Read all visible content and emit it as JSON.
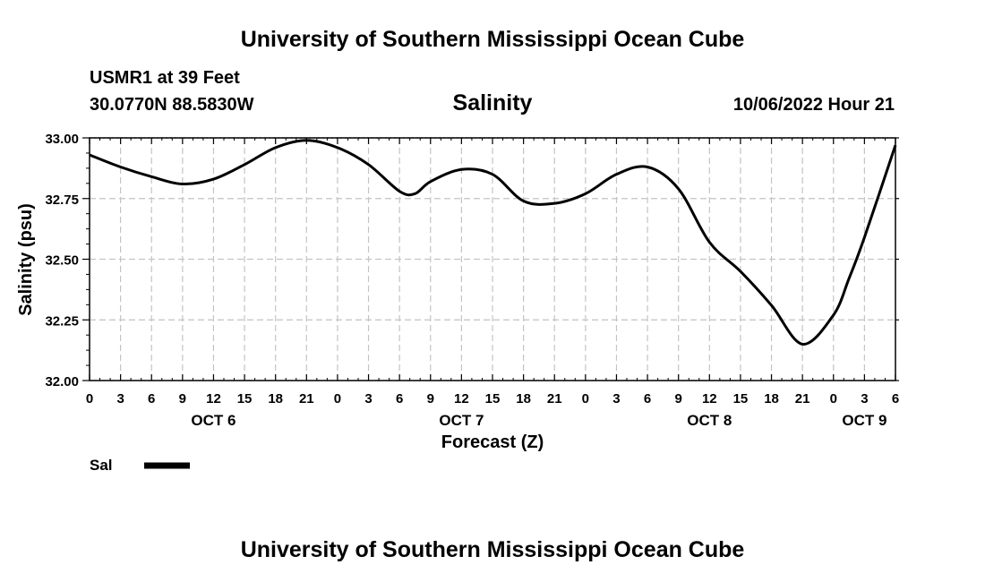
{
  "page": {
    "title": "University of Southern Mississippi Ocean Cube",
    "station": "USMR1 at 39 Feet",
    "coordinates": "30.0770N  88.5830W",
    "timestamp": "10/06/2022 Hour 21",
    "footer_title": "University of Southern Mississippi Ocean Cube"
  },
  "chart_data": {
    "type": "line",
    "title": "Salinity",
    "xlabel": "Forecast (Z)",
    "ylabel": "Salinity (psu)",
    "xlim": [
      0,
      78
    ],
    "ylim": [
      32.0,
      33.0
    ],
    "y_ticks": [
      "32.00",
      "32.25",
      "32.50",
      "32.75",
      "33.00"
    ],
    "y_tick_values": [
      32.0,
      32.25,
      32.5,
      32.75,
      33.0
    ],
    "x_ticks": [
      "0",
      "3",
      "6",
      "9",
      "12",
      "15",
      "18",
      "21",
      "0",
      "3",
      "6",
      "9",
      "12",
      "15",
      "18",
      "21",
      "0",
      "3",
      "6",
      "9",
      "12",
      "15",
      "18",
      "21",
      "0",
      "3",
      "6"
    ],
    "day_labels": [
      {
        "label": "OCT 6",
        "hour": 12
      },
      {
        "label": "OCT 7",
        "hour": 36
      },
      {
        "label": "OCT 8",
        "hour": 60
      },
      {
        "label": "OCT 9",
        "hour": 75
      }
    ],
    "grid": true,
    "legend": {
      "position": "bottom-left",
      "entries": [
        "Sal"
      ]
    },
    "series": [
      {
        "name": "Sal",
        "x": [
          0,
          3,
          6,
          9,
          12,
          15,
          18,
          21,
          24,
          27,
          30,
          31.5,
          33,
          36,
          39,
          42,
          45,
          48,
          51,
          54,
          57,
          60,
          63,
          66,
          69,
          72,
          73.5,
          75,
          78
        ],
        "values": [
          32.93,
          32.88,
          32.84,
          32.81,
          32.83,
          32.89,
          32.96,
          32.99,
          32.96,
          32.89,
          32.78,
          32.77,
          32.82,
          32.87,
          32.85,
          32.74,
          32.73,
          32.77,
          32.85,
          32.88,
          32.79,
          32.57,
          32.45,
          32.31,
          32.15,
          32.27,
          32.42,
          32.59,
          32.97
        ]
      }
    ]
  }
}
